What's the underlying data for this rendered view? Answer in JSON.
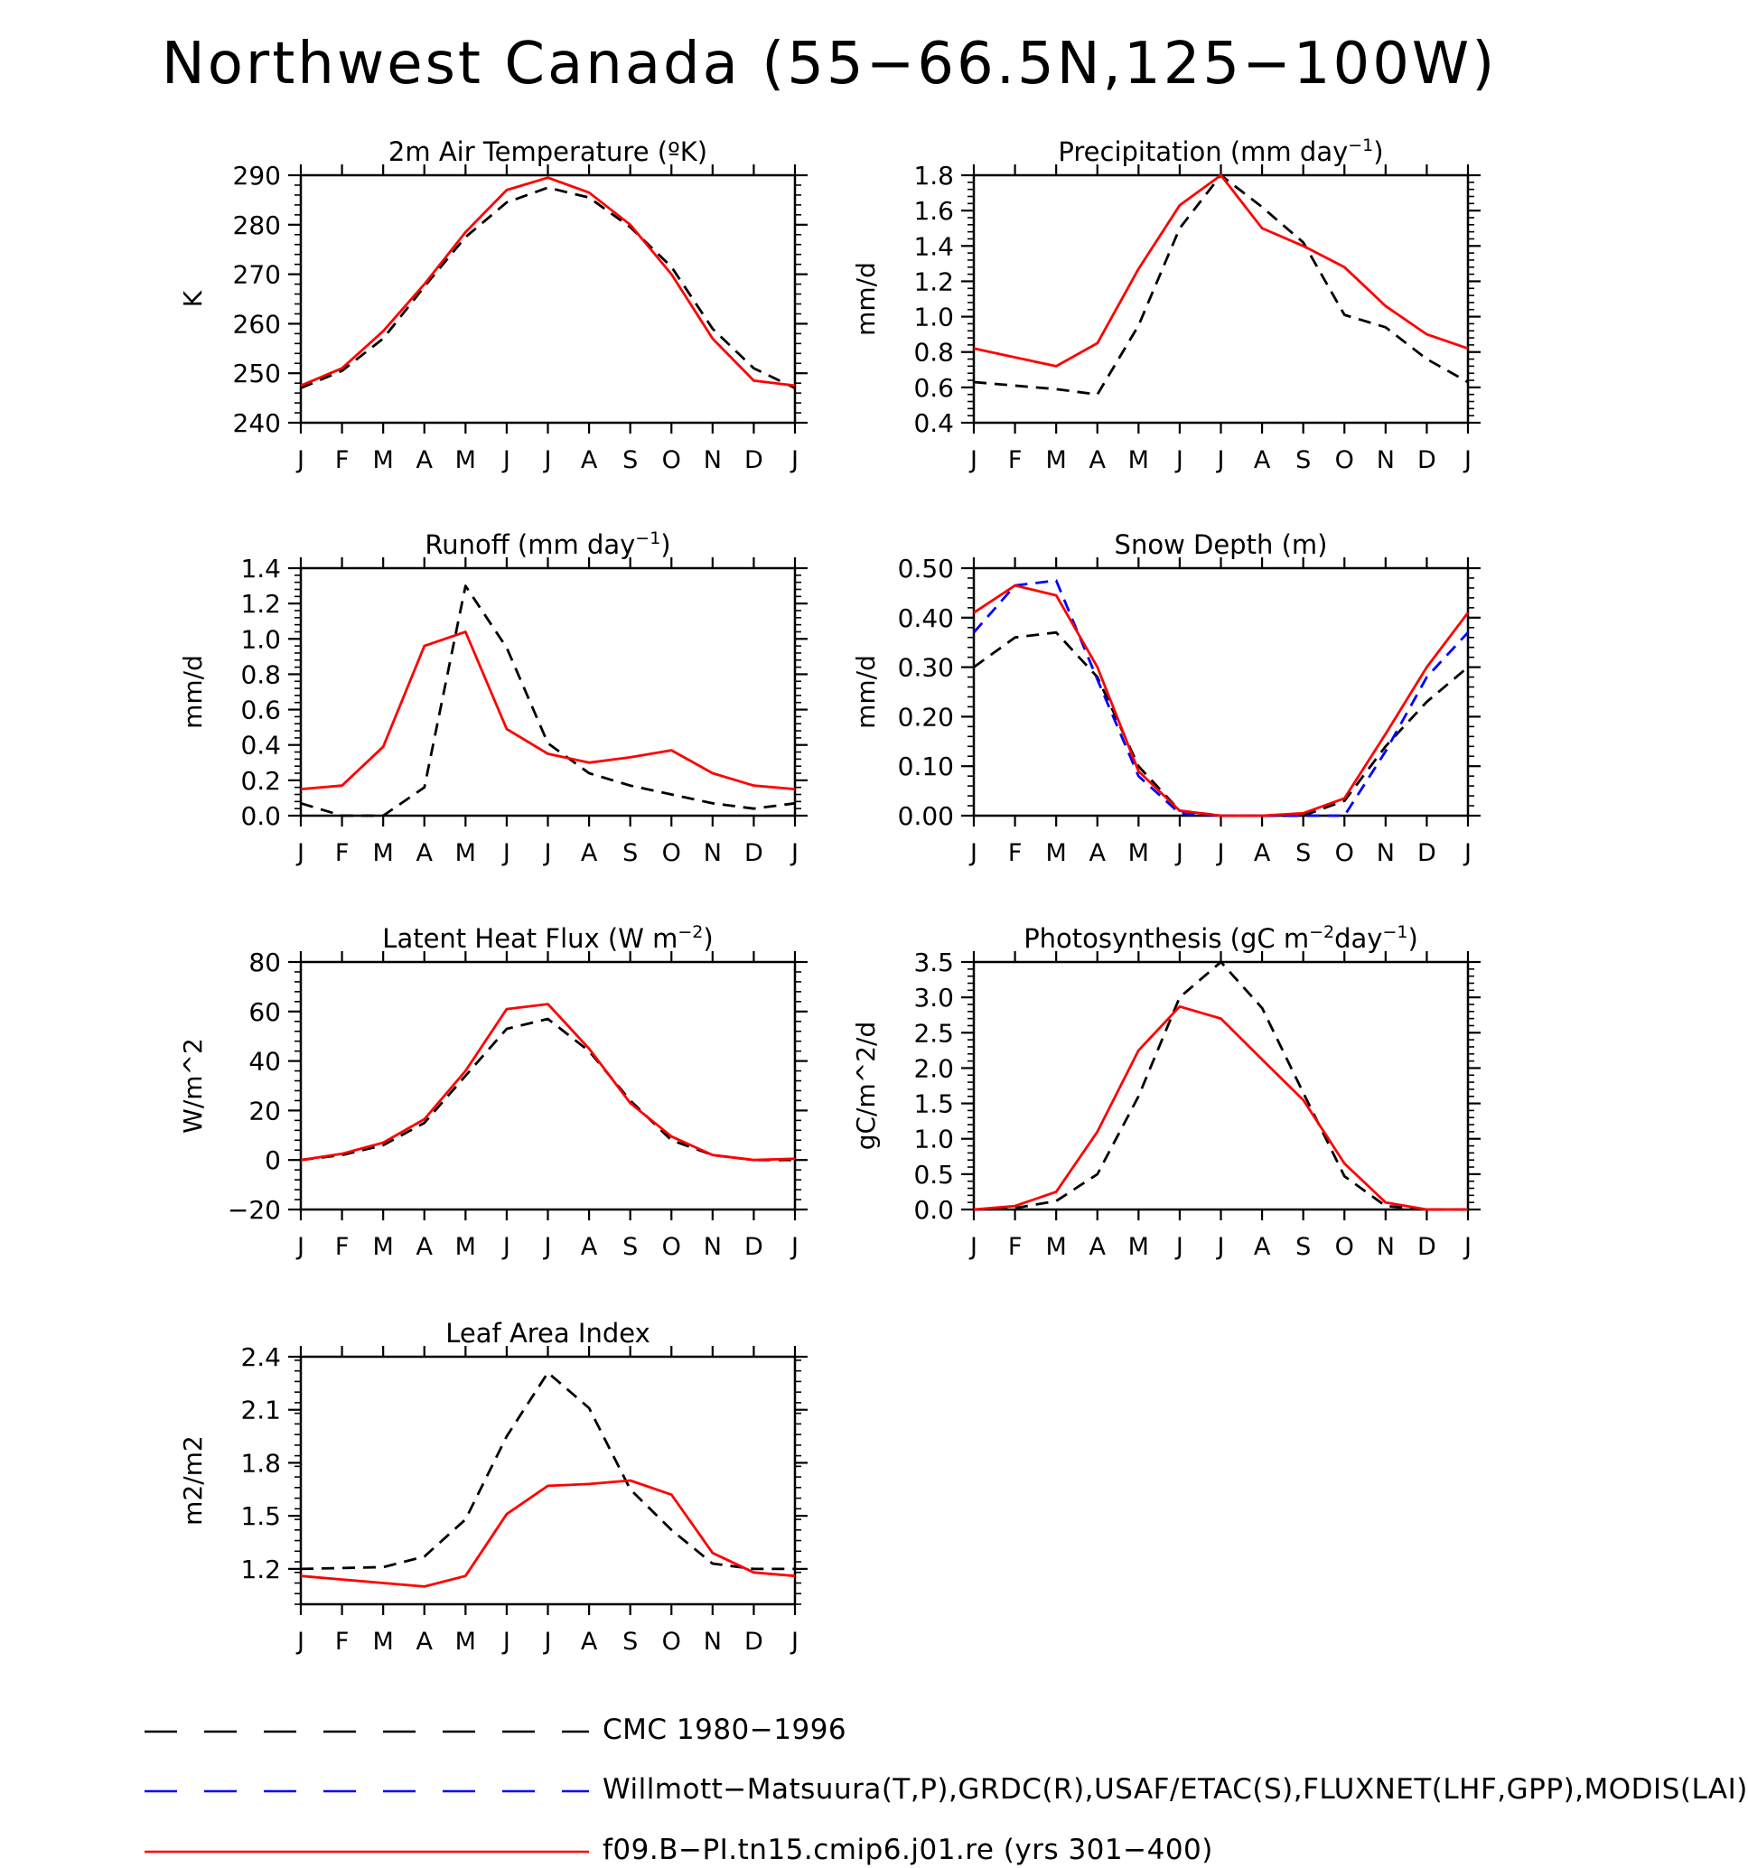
{
  "title": "Northwest Canada (55−66.5N,125−100W)",
  "month_labels": [
    "J",
    "F",
    "M",
    "A",
    "M",
    "J",
    "J",
    "A",
    "S",
    "O",
    "N",
    "D",
    "J"
  ],
  "legend": {
    "series": [
      {
        "name": "CMC 1980−1996",
        "color": "#000000",
        "style": "dash-long"
      },
      {
        "name": "Willmott−Matsuura(T,P),GRDC(R),USAF/ETAC(S),FLUXNET(LHF,GPP),MODIS(LAI)",
        "color": "#0000ff",
        "style": "dash-long"
      },
      {
        "name": "f09.B−PI.tn15.cmip6.j01.re (yrs 301−400)",
        "color": "#ff0000",
        "style": "solid"
      }
    ]
  },
  "chart_data": [
    {
      "type": "line",
      "title": "2m Air Temperature (ºK)",
      "ylabel": "K",
      "x": [
        "J",
        "F",
        "M",
        "A",
        "M",
        "J",
        "J",
        "A",
        "S",
        "O",
        "N",
        "D",
        "J"
      ],
      "ylim": [
        240,
        290
      ],
      "yticks": [
        240,
        250,
        260,
        270,
        280,
        290
      ],
      "ytick_labels": [
        "240",
        "250",
        "260",
        "270",
        "280",
        "290"
      ],
      "series": [
        {
          "name": "CMC 1980−1996",
          "color": "#000000",
          "dash": true,
          "values": [
            247,
            250.5,
            257,
            267.5,
            277.5,
            284.5,
            287.5,
            285.5,
            279.5,
            271.5,
            259,
            251,
            247
          ]
        },
        {
          "name": "f09.B−PI.tn15.cmip6.j01.re (yrs 301−400)",
          "color": "#ff0000",
          "dash": false,
          "values": [
            247.5,
            251,
            258.5,
            268,
            278.5,
            287,
            289.5,
            286.5,
            280,
            270,
            257,
            248.5,
            247.5
          ]
        }
      ]
    },
    {
      "type": "line",
      "title": "Precipitation (mm day⁻¹)",
      "ylabel": "mm/d",
      "x": [
        "J",
        "F",
        "M",
        "A",
        "M",
        "J",
        "J",
        "A",
        "S",
        "O",
        "N",
        "D",
        "J"
      ],
      "ylim": [
        0.4,
        1.8
      ],
      "yticks": [
        0.4,
        0.6,
        0.8,
        1.0,
        1.2,
        1.4,
        1.6,
        1.8
      ],
      "ytick_labels": [
        "0.4",
        "0.6",
        "0.8",
        "1.0",
        "1.2",
        "1.4",
        "1.6",
        "1.8"
      ],
      "series": [
        {
          "name": "CMC 1980−1996",
          "color": "#000000",
          "dash": true,
          "values": [
            0.63,
            0.61,
            0.59,
            0.56,
            0.95,
            1.5,
            1.8,
            1.62,
            1.42,
            1.01,
            0.94,
            0.76,
            0.63
          ]
        },
        {
          "name": "f09.B−PI.tn15.cmip6.j01.re (yrs 301−400)",
          "color": "#ff0000",
          "dash": false,
          "values": [
            0.82,
            0.77,
            0.72,
            0.85,
            1.27,
            1.63,
            1.8,
            1.5,
            1.4,
            1.28,
            1.06,
            0.9,
            0.82
          ]
        }
      ]
    },
    {
      "type": "line",
      "title": "Runoff (mm day⁻¹)",
      "ylabel": "mm/d",
      "x": [
        "J",
        "F",
        "M",
        "A",
        "M",
        "J",
        "J",
        "A",
        "S",
        "O",
        "N",
        "D",
        "J"
      ],
      "ylim": [
        0.0,
        1.4
      ],
      "yticks": [
        0.0,
        0.2,
        0.4,
        0.6,
        0.8,
        1.0,
        1.2,
        1.4
      ],
      "ytick_labels": [
        "0.0",
        "0.2",
        "0.4",
        "0.6",
        "0.8",
        "1.0",
        "1.2",
        "1.4"
      ],
      "series": [
        {
          "name": "CMC 1980−1996",
          "color": "#000000",
          "dash": true,
          "values": [
            0.07,
            0.0,
            0.0,
            0.16,
            1.3,
            0.95,
            0.41,
            0.24,
            0.17,
            0.12,
            0.07,
            0.04,
            0.07
          ]
        },
        {
          "name": "f09.B−PI.tn15.cmip6.j01.re (yrs 301−400)",
          "color": "#ff0000",
          "dash": false,
          "values": [
            0.15,
            0.17,
            0.39,
            0.96,
            1.04,
            0.49,
            0.35,
            0.3,
            0.33,
            0.37,
            0.24,
            0.17,
            0.15
          ]
        }
      ]
    },
    {
      "type": "line",
      "title": "Snow Depth (m)",
      "ylabel": "mm/d",
      "x": [
        "J",
        "F",
        "M",
        "A",
        "M",
        "J",
        "J",
        "A",
        "S",
        "O",
        "N",
        "D",
        "J"
      ],
      "ylim": [
        0.0,
        0.5
      ],
      "yticks": [
        0.0,
        0.1,
        0.2,
        0.3,
        0.4,
        0.5
      ],
      "ytick_labels": [
        "0.00",
        "0.10",
        "0.20",
        "0.30",
        "0.40",
        "0.50"
      ],
      "series": [
        {
          "name": "CMC 1980−1996",
          "color": "#000000",
          "dash": true,
          "values": [
            0.3,
            0.36,
            0.37,
            0.28,
            0.1,
            0.01,
            0.0,
            0.0,
            0.0,
            0.03,
            0.14,
            0.23,
            0.3
          ]
        },
        {
          "name": "Willmott−Matsuura(T,P),GRDC(R),USAF/ETAC(S),FLUXNET(LHF,GPP),MODIS(LAI)",
          "color": "#0000ff",
          "dash": true,
          "values": [
            0.37,
            0.465,
            0.475,
            0.275,
            0.08,
            0.005,
            0.0,
            0.0,
            0.0,
            0.0,
            0.13,
            0.28,
            0.37
          ]
        },
        {
          "name": "f09.B−PI.tn15.cmip6.j01.re (yrs 301−400)",
          "color": "#ff0000",
          "dash": false,
          "values": [
            0.41,
            0.465,
            0.445,
            0.3,
            0.09,
            0.01,
            0.0,
            0.0,
            0.005,
            0.035,
            0.165,
            0.3,
            0.41
          ]
        }
      ]
    },
    {
      "type": "line",
      "title": "Latent Heat Flux (W m⁻²)",
      "ylabel": "W/m^2",
      "x": [
        "J",
        "F",
        "M",
        "A",
        "M",
        "J",
        "J",
        "A",
        "S",
        "O",
        "N",
        "D",
        "J"
      ],
      "ylim": [
        -20,
        80
      ],
      "yticks": [
        -20,
        0,
        20,
        40,
        60,
        80
      ],
      "ytick_labels": [
        "−20",
        "0",
        "20",
        "40",
        "60",
        "80"
      ],
      "series": [
        {
          "name": "CMC 1980−1996",
          "color": "#000000",
          "dash": true,
          "values": [
            0,
            2,
            6,
            15,
            34,
            53,
            57,
            44,
            24,
            8,
            2,
            0,
            0
          ]
        },
        {
          "name": "f09.B−PI.tn15.cmip6.j01.re (yrs 301−400)",
          "color": "#ff0000",
          "dash": false,
          "values": [
            0,
            2.5,
            7,
            16.5,
            36,
            61,
            63,
            45,
            23,
            9.5,
            2,
            0,
            0.5
          ]
        }
      ]
    },
    {
      "type": "line",
      "title": "Photosynthesis (gC m⁻²day⁻¹)",
      "ylabel": "gC/m^2/d",
      "x": [
        "J",
        "F",
        "M",
        "A",
        "M",
        "J",
        "J",
        "A",
        "S",
        "O",
        "N",
        "D",
        "J"
      ],
      "ylim": [
        0.0,
        3.5
      ],
      "yticks": [
        0.0,
        0.5,
        1.0,
        1.5,
        2.0,
        2.5,
        3.0,
        3.5
      ],
      "ytick_labels": [
        "0.0",
        "0.5",
        "1.0",
        "1.5",
        "2.0",
        "2.5",
        "3.0",
        "3.5"
      ],
      "series": [
        {
          "name": "CMC 1980−1996",
          "color": "#000000",
          "dash": true,
          "values": [
            0.0,
            0.02,
            0.12,
            0.5,
            1.6,
            3.0,
            3.5,
            2.85,
            1.65,
            0.47,
            0.05,
            0.0,
            0.0
          ]
        },
        {
          "name": "f09.B−PI.tn15.cmip6.j01.re (yrs 301−400)",
          "color": "#ff0000",
          "dash": false,
          "values": [
            0.0,
            0.05,
            0.25,
            1.1,
            2.25,
            2.87,
            2.7,
            2.12,
            1.55,
            0.65,
            0.1,
            0.0,
            0.0
          ]
        }
      ]
    },
    {
      "type": "line",
      "title": "Leaf Area Index",
      "ylabel": "m2/m2",
      "x": [
        "J",
        "F",
        "M",
        "A",
        "M",
        "J",
        "J",
        "A",
        "S",
        "O",
        "N",
        "D",
        "J"
      ],
      "ylim": [
        1.0,
        2.4
      ],
      "yticks": [
        1.2,
        1.5,
        1.8,
        2.1,
        2.4
      ],
      "ytick_labels": [
        "1.2",
        "1.5",
        "1.8",
        "2.1",
        "2.4"
      ],
      "series": [
        {
          "name": "CMC 1980−1996",
          "color": "#000000",
          "dash": true,
          "values": [
            1.2,
            1.205,
            1.21,
            1.27,
            1.48,
            1.95,
            2.31,
            2.11,
            1.65,
            1.42,
            1.23,
            1.2,
            1.2
          ]
        },
        {
          "name": "f09.B−PI.tn15.cmip6.j01.re (yrs 301−400)",
          "color": "#ff0000",
          "dash": false,
          "values": [
            1.16,
            1.14,
            1.12,
            1.1,
            1.16,
            1.51,
            1.67,
            1.68,
            1.7,
            1.62,
            1.29,
            1.18,
            1.16
          ]
        }
      ]
    }
  ]
}
